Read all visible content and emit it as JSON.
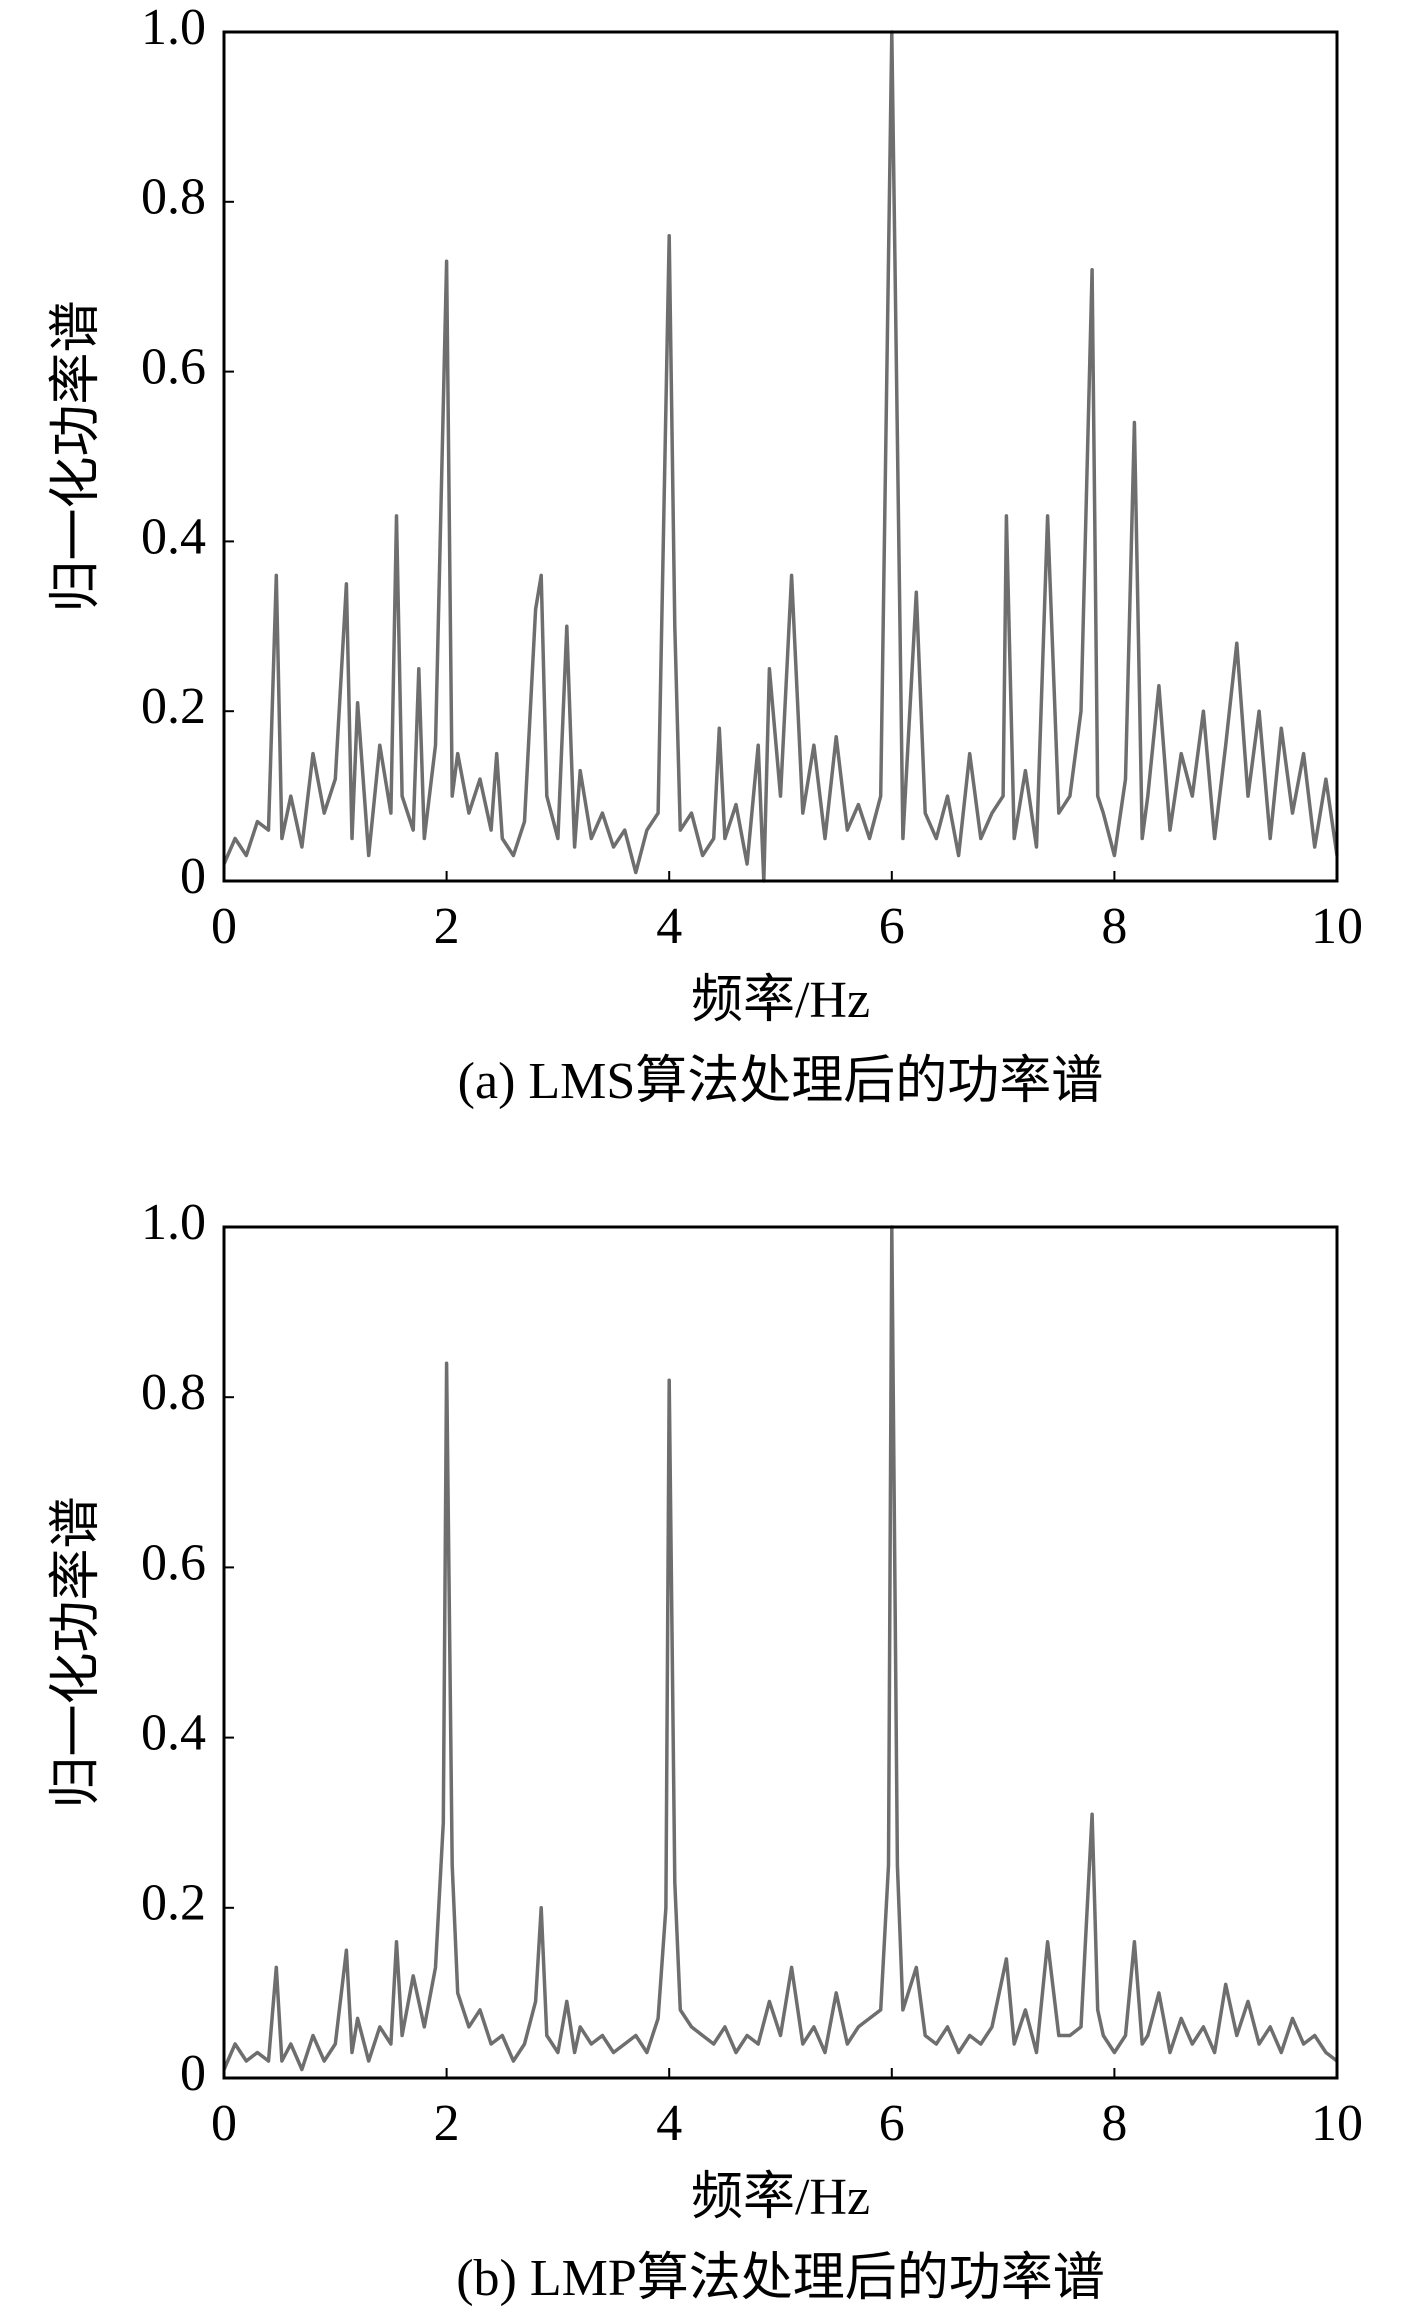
{
  "chart_data": [
    {
      "type": "line",
      "caption": "(a) LMS算法处理后的功率谱",
      "xlabel": "频率/Hz",
      "ylabel": "归一化功率谱",
      "color": "#6e6e6e",
      "xlim": [
        0,
        10
      ],
      "xticks": [
        0,
        2,
        4,
        6,
        8,
        10
      ],
      "ylim": [
        0,
        1
      ],
      "yticks": [
        0,
        0.2,
        0.4,
        0.6,
        0.8,
        {
          "value": 1,
          "label": "1.0"
        }
      ],
      "x": [
        0,
        0.1,
        0.2,
        0.3,
        0.4,
        0.47,
        0.52,
        0.6,
        0.7,
        0.8,
        0.9,
        1.0,
        1.1,
        1.15,
        1.2,
        1.3,
        1.4,
        1.5,
        1.55,
        1.6,
        1.7,
        1.75,
        1.8,
        1.9,
        2.0,
        2.05,
        2.1,
        2.2,
        2.3,
        2.4,
        2.45,
        2.5,
        2.6,
        2.7,
        2.8,
        2.85,
        2.9,
        3.0,
        3.08,
        3.15,
        3.2,
        3.3,
        3.4,
        3.5,
        3.6,
        3.7,
        3.8,
        3.9,
        4.0,
        4.05,
        4.1,
        4.2,
        4.3,
        4.4,
        4.45,
        4.5,
        4.6,
        4.7,
        4.8,
        4.85,
        4.9,
        5.0,
        5.1,
        5.2,
        5.3,
        5.4,
        5.5,
        5.6,
        5.7,
        5.8,
        5.9,
        6.0,
        6.1,
        6.22,
        6.3,
        6.4,
        6.5,
        6.6,
        6.7,
        6.8,
        6.9,
        7.0,
        7.03,
        7.1,
        7.2,
        7.3,
        7.4,
        7.5,
        7.6,
        7.7,
        7.8,
        7.85,
        7.9,
        8.0,
        8.1,
        8.18,
        8.25,
        8.3,
        8.4,
        8.5,
        8.6,
        8.7,
        8.8,
        8.9,
        9.0,
        9.1,
        9.2,
        9.3,
        9.4,
        9.5,
        9.6,
        9.7,
        9.8,
        9.9,
        10
      ],
      "values": [
        0.02,
        0.05,
        0.03,
        0.07,
        0.06,
        0.36,
        0.05,
        0.1,
        0.04,
        0.15,
        0.08,
        0.12,
        0.35,
        0.05,
        0.21,
        0.03,
        0.16,
        0.08,
        0.43,
        0.1,
        0.06,
        0.25,
        0.05,
        0.16,
        0.73,
        0.1,
        0.15,
        0.08,
        0.12,
        0.06,
        0.15,
        0.05,
        0.03,
        0.07,
        0.32,
        0.36,
        0.1,
        0.05,
        0.3,
        0.04,
        0.13,
        0.05,
        0.08,
        0.04,
        0.06,
        0.01,
        0.06,
        0.08,
        0.76,
        0.3,
        0.06,
        0.08,
        0.03,
        0.05,
        0.18,
        0.05,
        0.09,
        0.02,
        0.16,
        0.0,
        0.25,
        0.1,
        0.36,
        0.08,
        0.16,
        0.05,
        0.17,
        0.06,
        0.09,
        0.05,
        0.1,
        1.0,
        0.05,
        0.34,
        0.08,
        0.05,
        0.1,
        0.03,
        0.15,
        0.05,
        0.08,
        0.1,
        0.43,
        0.05,
        0.13,
        0.04,
        0.43,
        0.08,
        0.1,
        0.2,
        0.72,
        0.1,
        0.08,
        0.03,
        0.12,
        0.54,
        0.05,
        0.1,
        0.23,
        0.06,
        0.15,
        0.1,
        0.2,
        0.05,
        0.16,
        0.28,
        0.1,
        0.2,
        0.05,
        0.18,
        0.08,
        0.15,
        0.04,
        0.12,
        0.03
      ]
    },
    {
      "type": "line",
      "caption": "(b) LMP算法处理后的功率谱",
      "xlabel": "频率/Hz",
      "ylabel": "归一化功率谱",
      "color": "#6e6e6e",
      "xlim": [
        0,
        10
      ],
      "xticks": [
        0,
        2,
        4,
        6,
        8,
        10
      ],
      "ylim": [
        0,
        1
      ],
      "yticks": [
        0,
        0.2,
        0.4,
        0.6,
        0.8,
        {
          "value": 1,
          "label": "1.0"
        }
      ],
      "x": [
        0,
        0.1,
        0.2,
        0.3,
        0.4,
        0.47,
        0.52,
        0.6,
        0.7,
        0.8,
        0.9,
        1.0,
        1.1,
        1.15,
        1.2,
        1.3,
        1.4,
        1.5,
        1.55,
        1.6,
        1.7,
        1.8,
        1.9,
        1.97,
        2.0,
        2.05,
        2.1,
        2.2,
        2.3,
        2.4,
        2.5,
        2.6,
        2.7,
        2.8,
        2.85,
        2.9,
        3.0,
        3.08,
        3.15,
        3.2,
        3.3,
        3.4,
        3.5,
        3.6,
        3.7,
        3.8,
        3.9,
        3.97,
        4.0,
        4.05,
        4.1,
        4.2,
        4.3,
        4.4,
        4.5,
        4.6,
        4.7,
        4.8,
        4.9,
        5.0,
        5.1,
        5.2,
        5.3,
        5.4,
        5.5,
        5.6,
        5.7,
        5.8,
        5.9,
        5.97,
        6.0,
        6.05,
        6.1,
        6.22,
        6.3,
        6.4,
        6.5,
        6.6,
        6.7,
        6.8,
        6.9,
        7.03,
        7.1,
        7.2,
        7.3,
        7.4,
        7.5,
        7.6,
        7.7,
        7.8,
        7.85,
        7.9,
        8.0,
        8.1,
        8.18,
        8.25,
        8.3,
        8.4,
        8.5,
        8.6,
        8.7,
        8.8,
        8.9,
        9.0,
        9.1,
        9.2,
        9.3,
        9.4,
        9.5,
        9.6,
        9.7,
        9.8,
        9.9,
        10
      ],
      "values": [
        0.01,
        0.04,
        0.02,
        0.03,
        0.02,
        0.13,
        0.02,
        0.04,
        0.01,
        0.05,
        0.02,
        0.04,
        0.15,
        0.03,
        0.07,
        0.02,
        0.06,
        0.04,
        0.16,
        0.05,
        0.12,
        0.06,
        0.13,
        0.3,
        0.84,
        0.25,
        0.1,
        0.06,
        0.08,
        0.04,
        0.05,
        0.02,
        0.04,
        0.09,
        0.2,
        0.05,
        0.03,
        0.09,
        0.03,
        0.06,
        0.04,
        0.05,
        0.03,
        0.04,
        0.05,
        0.03,
        0.07,
        0.2,
        0.82,
        0.23,
        0.08,
        0.06,
        0.05,
        0.04,
        0.06,
        0.03,
        0.05,
        0.04,
        0.09,
        0.05,
        0.13,
        0.04,
        0.06,
        0.03,
        0.1,
        0.04,
        0.06,
        0.07,
        0.08,
        0.25,
        1.0,
        0.25,
        0.08,
        0.13,
        0.05,
        0.04,
        0.06,
        0.03,
        0.05,
        0.04,
        0.06,
        0.14,
        0.04,
        0.08,
        0.03,
        0.16,
        0.05,
        0.05,
        0.06,
        0.31,
        0.08,
        0.05,
        0.03,
        0.05,
        0.16,
        0.04,
        0.05,
        0.1,
        0.03,
        0.07,
        0.04,
        0.06,
        0.03,
        0.11,
        0.05,
        0.09,
        0.04,
        0.06,
        0.03,
        0.07,
        0.04,
        0.05,
        0.03,
        0.02
      ]
    }
  ]
}
